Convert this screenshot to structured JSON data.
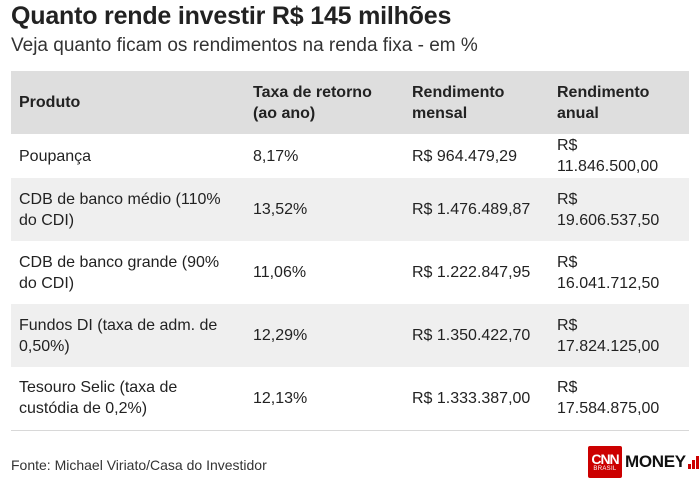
{
  "header": {
    "title": "Quanto rende investir R$ 145 milhões",
    "subtitle": "Veja quanto ficam os rendimentos na renda fixa - em %"
  },
  "table": {
    "columns": [
      "Produto",
      "Taxa de retorno (ao ano)",
      "Rendimento mensal",
      "Rendimento anual"
    ],
    "rows": [
      [
        "Poupança",
        "8,17%",
        "R$ 964.479,29",
        "R$ 11.846.500,00"
      ],
      [
        "CDB de banco médio (110% do CDI)",
        "13,52%",
        "R$ 1.476.489,87",
        "R$ 19.606.537,50"
      ],
      [
        "CDB de banco grande (90% do CDI)",
        "11,06%",
        "R$ 1.222.847,95",
        "R$ 16.041.712,50"
      ],
      [
        "Fundos DI (taxa de adm. de 0,50%)",
        "12,29%",
        "R$ 1.350.422,70",
        "R$ 17.824.125,00"
      ],
      [
        "Tesouro Selic (taxa de custódia de 0,2%)",
        "12,13%",
        "R$ 1.333.387,00",
        "R$ 17.584.875,00"
      ]
    ]
  },
  "footer": {
    "source": "Fonte: Michael Viriato/Casa do Investidor",
    "logo": {
      "brand": "CNN",
      "sub": "BRASIL",
      "product": "MONEY",
      "accent": "#cc0000"
    }
  }
}
